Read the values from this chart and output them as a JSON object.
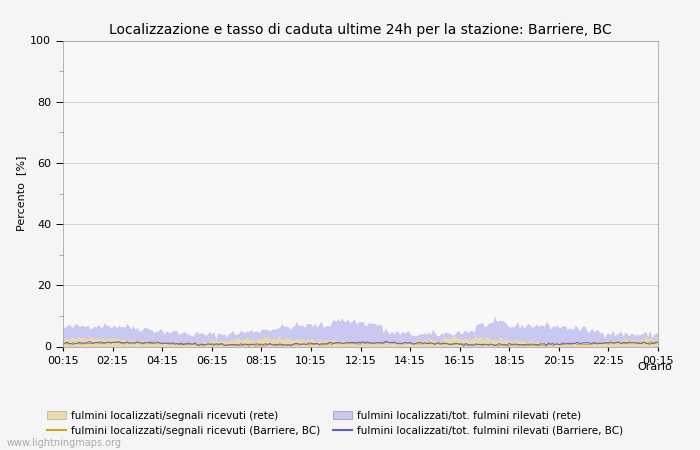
{
  "title": "Localizzazione e tasso di caduta ultime 24h per la stazione: Barriere, BC",
  "ylabel": "Percento  [%]",
  "xlabel": "Orario",
  "xlim": [
    0,
    96
  ],
  "ylim": [
    0,
    100
  ],
  "yticks": [
    0,
    20,
    40,
    60,
    80,
    100
  ],
  "yticks_minor": [
    10,
    30,
    50,
    70,
    90
  ],
  "xtick_labels": [
    "00:15",
    "02:15",
    "04:15",
    "06:15",
    "08:15",
    "10:15",
    "12:15",
    "14:15",
    "16:15",
    "18:15",
    "20:15",
    "22:15",
    "00:15"
  ],
  "xtick_positions": [
    0,
    8,
    16,
    24,
    32,
    40,
    48,
    56,
    64,
    72,
    80,
    88,
    96
  ],
  "fill_rete_color": "#e8d8b0",
  "fill_bc_color": "#c8c8f0",
  "line_rete_color": "#d4a020",
  "line_bc_color": "#6060c0",
  "background_color": "#f5f5f5",
  "plot_bg_color": "#f8f8f8",
  "watermark": "www.lightningmaps.org",
  "legend_labels": [
    "fulmini localizzati/segnali ricevuti (rete)",
    "fulmini localizzati/segnali ricevuti (Barriere, BC)",
    "fulmini localizzati/tot. fulmini rilevati (rete)",
    "fulmini localizzati/tot. fulmini rilevati (Barriere, BC)"
  ],
  "title_fontsize": 10,
  "axis_fontsize": 8,
  "legend_fontsize": 7.5,
  "watermark_fontsize": 7
}
